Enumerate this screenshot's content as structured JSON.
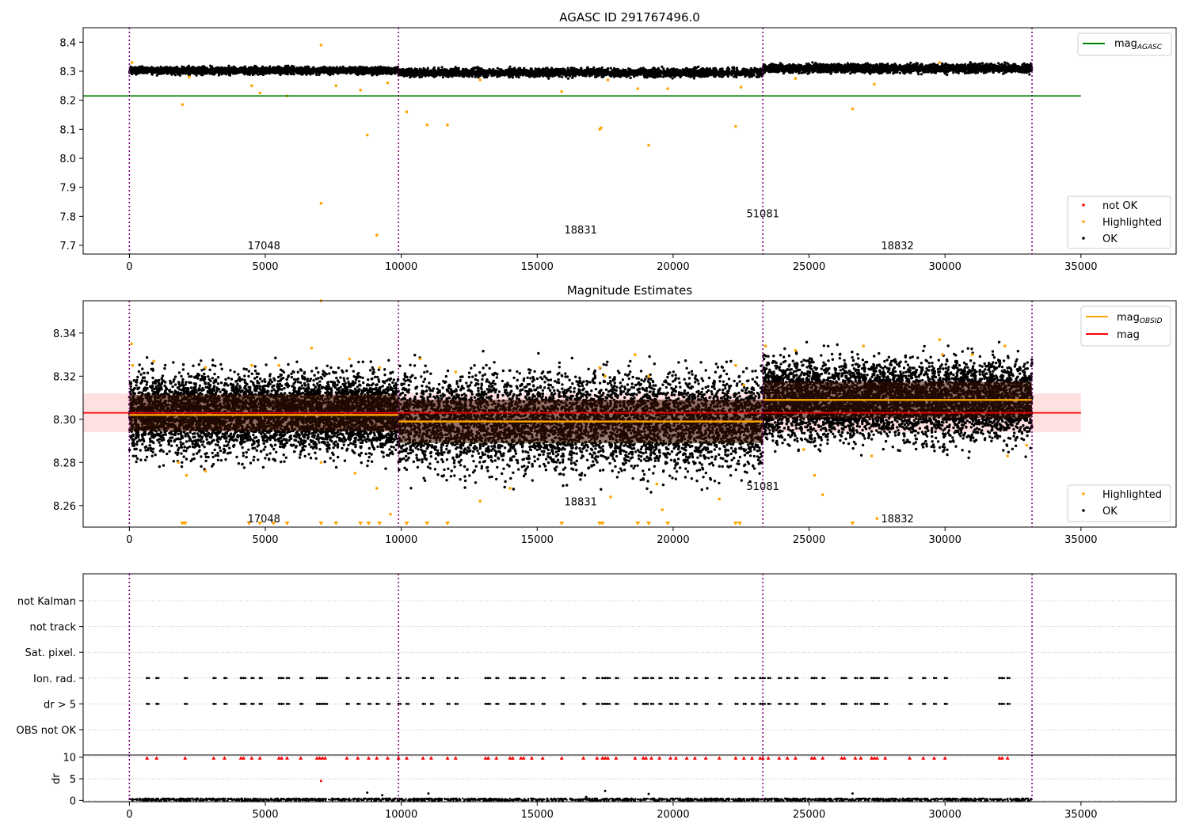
{
  "figure": {
    "title_top": "AGASC ID 291767496.0",
    "title_mid": "Magnitude Estimates"
  },
  "chart_data": [
    {
      "type": "scatter",
      "panel": "top",
      "title": "AGASC ID 291767496.0",
      "xlim": [
        -1700,
        38500
      ],
      "ylim": [
        7.67,
        8.45
      ],
      "xticks": [
        0,
        5000,
        10000,
        15000,
        20000,
        25000,
        30000,
        35000
      ],
      "yticks": [
        7.7,
        7.8,
        7.9,
        8.0,
        8.1,
        8.2,
        8.3,
        8.4
      ],
      "ytick_labels": [
        "7.7",
        "7.8",
        "7.9",
        "8.0",
        "8.1",
        "8.2",
        "8.3",
        "8.4"
      ],
      "grid": false,
      "series": [
        {
          "name": "not OK",
          "color": "#ff0000",
          "points": []
        },
        {
          "name": "Highlighted",
          "color": "#ffa500",
          "points": [
            [
              100,
              8.33
            ],
            [
              1950,
              8.185
            ],
            [
              2200,
              8.28
            ],
            [
              4500,
              8.25
            ],
            [
              4800,
              8.225
            ],
            [
              5800,
              8.215
            ],
            [
              7050,
              8.39
            ],
            [
              7050,
              7.845
            ],
            [
              7600,
              8.25
            ],
            [
              8500,
              8.235
            ],
            [
              8750,
              8.08
            ],
            [
              9100,
              7.735
            ],
            [
              9500,
              8.26
            ],
            [
              10200,
              8.16
            ],
            [
              10950,
              8.115
            ],
            [
              11700,
              8.115
            ],
            [
              12900,
              8.27
            ],
            [
              15900,
              8.23
            ],
            [
              17300,
              8.1
            ],
            [
              17350,
              8.105
            ],
            [
              17600,
              8.27
            ],
            [
              18700,
              8.24
            ],
            [
              19100,
              8.045
            ],
            [
              19800,
              8.24
            ],
            [
              22300,
              8.11
            ],
            [
              22500,
              8.245
            ],
            [
              24500,
              8.275
            ],
            [
              26600,
              8.17
            ],
            [
              27400,
              8.255
            ],
            [
              29800,
              8.33
            ]
          ]
        },
        {
          "name": "OK",
          "color": "#000000",
          "bands": [
            {
              "x": [
                0,
                9900
              ],
              "y": [
                8.29,
                8.315
              ]
            },
            {
              "x": [
                9900,
                23300
              ],
              "y": [
                8.28,
                8.31
              ]
            },
            {
              "x": [
                23300,
                33200
              ],
              "y": [
                8.295,
                8.325
              ]
            }
          ]
        }
      ],
      "reference_lines": [
        {
          "name": "mag",
          "sub": "AGASC",
          "color": "#008000",
          "y": 8.215,
          "x": [
            -1700,
            35000
          ]
        }
      ],
      "obs_boundaries": [
        0,
        9900,
        23300,
        33200
      ],
      "obsid_labels": [
        {
          "text": "17048",
          "x": 4950,
          "y": 7.7
        },
        {
          "text": "18831",
          "x": 16600,
          "y": 7.755
        },
        {
          "text": "51081",
          "x": 23300,
          "y": 7.81
        },
        {
          "text": "18832",
          "x": 28250,
          "y": 7.7
        }
      ],
      "legend_upper": {
        "placement": "top-right",
        "entries": [
          {
            "label": "mag",
            "sub": "AGASC",
            "color": "#008000"
          }
        ]
      },
      "legend_lower": {
        "placement": "bottom-right",
        "entries": [
          {
            "label": "not OK",
            "color": "#ff0000"
          },
          {
            "label": "Highlighted",
            "color": "#ffa500"
          },
          {
            "label": "OK",
            "color": "#000000"
          }
        ]
      }
    },
    {
      "type": "scatter",
      "panel": "middle",
      "title": "Magnitude Estimates",
      "xlim": [
        -1700,
        38500
      ],
      "ylim": [
        8.25,
        8.355
      ],
      "xticks": [
        0,
        5000,
        10000,
        15000,
        20000,
        25000,
        30000,
        35000
      ],
      "yticks": [
        8.26,
        8.28,
        8.3,
        8.32,
        8.34
      ],
      "ytick_labels": [
        "8.26",
        "8.28",
        "8.30",
        "8.32",
        "8.34"
      ],
      "grid": false,
      "series": [
        {
          "name": "Highlighted",
          "color": "#ffa500",
          "points": [
            [
              80,
              8.335
            ],
            [
              120,
              8.325
            ],
            [
              900,
              8.327
            ],
            [
              1800,
              8.28
            ],
            [
              2100,
              8.274
            ],
            [
              2800,
              8.324
            ],
            [
              2800,
              8.276
            ],
            [
              4500,
              8.325
            ],
            [
              5500,
              8.325
            ],
            [
              6700,
              8.333
            ],
            [
              7050,
              8.355
            ],
            [
              7050,
              8.28
            ],
            [
              8100,
              8.328
            ],
            [
              8300,
              8.275
            ],
            [
              9100,
              8.268
            ],
            [
              9200,
              8.324
            ],
            [
              9600,
              8.256
            ],
            [
              10700,
              8.328
            ],
            [
              12000,
              8.322
            ],
            [
              12900,
              8.262
            ],
            [
              14000,
              8.268
            ],
            [
              17300,
              8.324
            ],
            [
              17500,
              8.32
            ],
            [
              17700,
              8.264
            ],
            [
              18600,
              8.33
            ],
            [
              19100,
              8.32
            ],
            [
              19400,
              8.27
            ],
            [
              19600,
              8.258
            ],
            [
              21700,
              8.263
            ],
            [
              22300,
              8.325
            ],
            [
              22600,
              8.316
            ],
            [
              23400,
              8.334
            ],
            [
              24500,
              8.332
            ],
            [
              24800,
              8.286
            ],
            [
              25200,
              8.274
            ],
            [
              25500,
              8.265
            ],
            [
              27000,
              8.334
            ],
            [
              27300,
              8.283
            ],
            [
              27500,
              8.254
            ],
            [
              29800,
              8.337
            ],
            [
              29900,
              8.33
            ],
            [
              31000,
              8.33
            ],
            [
              32200,
              8.334
            ],
            [
              32300,
              8.283
            ],
            [
              33000,
              8.288
            ]
          ]
        },
        {
          "name": "OK",
          "color": "#000000",
          "bands": [
            {
              "x": [
                0,
                9900
              ],
              "y": [
                8.284,
                8.322
              ]
            },
            {
              "x": [
                9900,
                23300
              ],
              "y": [
                8.276,
                8.322
              ]
            },
            {
              "x": [
                23300,
                33200
              ],
              "y": [
                8.29,
                8.328
              ]
            }
          ]
        }
      ],
      "reference_lines": [
        {
          "name": "mag",
          "sub": "OBSID",
          "color": "#ffa500",
          "segments": [
            {
              "x": [
                0,
                9900
              ],
              "y": 8.302
            },
            {
              "x": [
                9900,
                23300
              ],
              "y": 8.299
            },
            {
              "x": [
                23300,
                33200
              ],
              "y": 8.309
            }
          ]
        },
        {
          "name": "mag",
          "color": "#ff0000",
          "y": 8.303,
          "x": [
            -1700,
            35000
          ],
          "band": [
            8.294,
            8.312
          ]
        }
      ],
      "below_range_markers": [
        1950,
        2050,
        4400,
        4800,
        5300,
        5800,
        7050,
        7600,
        8500,
        8800,
        9200,
        10200,
        10950,
        11700,
        15900,
        17300,
        17400,
        18700,
        19100,
        19800,
        22300,
        22450,
        26600
      ],
      "obs_boundaries": [
        0,
        9900,
        23300,
        33200
      ],
      "obsid_labels": [
        {
          "text": "17048",
          "x": 4950,
          "y": 8.254
        },
        {
          "text": "18831",
          "x": 16600,
          "y": 8.262
        },
        {
          "text": "51081",
          "x": 23300,
          "y": 8.269
        },
        {
          "text": "18832",
          "x": 28250,
          "y": 8.254
        }
      ],
      "legend_upper": {
        "placement": "top-right",
        "entries": [
          {
            "label": "mag",
            "sub": "OBSID",
            "color": "#ffa500"
          },
          {
            "label": "mag",
            "color": "#ff0000"
          }
        ]
      },
      "legend_lower": {
        "placement": "bottom-right",
        "entries": [
          {
            "label": "Highlighted",
            "color": "#ffa500"
          },
          {
            "label": "OK",
            "color": "#000000"
          }
        ]
      }
    },
    {
      "type": "scatter",
      "panel": "flags",
      "xlim": [
        -1700,
        38500
      ],
      "categories": [
        "not Kalman",
        "not track",
        "Sat. pixel.",
        "Ion. rad.",
        "dr > 5",
        "OBS not OK"
      ],
      "grid": true,
      "flag_x": [
        650,
        1000,
        2050,
        3100,
        3500,
        4100,
        4200,
        4500,
        4800,
        5500,
        5600,
        5800,
        6300,
        6900,
        7000,
        7100,
        7200,
        8000,
        8400,
        8800,
        9100,
        9500,
        9900,
        10200,
        10800,
        11100,
        11700,
        12000,
        13100,
        13200,
        13500,
        14000,
        14100,
        14400,
        14500,
        14800,
        15200,
        15900,
        16700,
        17200,
        17400,
        17500,
        17600,
        17900,
        18600,
        18900,
        19000,
        19200,
        19500,
        19900,
        20100,
        20500,
        20800,
        21200,
        21700,
        22300,
        22600,
        22900,
        23200,
        23300,
        23500,
        23900,
        24200,
        24500,
        25100,
        25200,
        25500,
        26200,
        26300,
        26700,
        26900,
        27300,
        27400,
        27500,
        27800,
        28700,
        29200,
        29600,
        30000,
        32000,
        32100,
        32300
      ],
      "obs_boundaries": [
        0,
        9900,
        23300,
        33200
      ]
    },
    {
      "type": "scatter",
      "panel": "dr",
      "ylabel": "dr",
      "xlim": [
        -1700,
        38500
      ],
      "ylim": [
        -0.3,
        10.5
      ],
      "yticks": [
        0,
        5,
        10
      ],
      "ytick_labels": [
        "0",
        "5",
        "10"
      ],
      "xticks": [
        0,
        5000,
        10000,
        15000,
        20000,
        25000,
        30000,
        35000
      ],
      "grid": true,
      "series": [
        {
          "name": "OK",
          "color": "#000000",
          "baseline_y": 0.2,
          "points": [
            [
              8750,
              1.8
            ],
            [
              9300,
              1.2
            ],
            [
              11000,
              1.6
            ],
            [
              17500,
              2.2
            ],
            [
              19100,
              1.5
            ],
            [
              26600,
              1.6
            ],
            [
              16800,
              0.8
            ]
          ]
        },
        {
          "name": "not OK",
          "color": "#ff0000",
          "points": [
            [
              7050,
              4.5
            ]
          ],
          "capped_y": 10
        }
      ],
      "obs_boundaries": [
        0,
        9900,
        23300,
        33200
      ]
    }
  ],
  "axis_tick_labels": {
    "x": [
      "0",
      "5000",
      "10000",
      "15000",
      "20000",
      "25000",
      "30000",
      "35000"
    ]
  }
}
